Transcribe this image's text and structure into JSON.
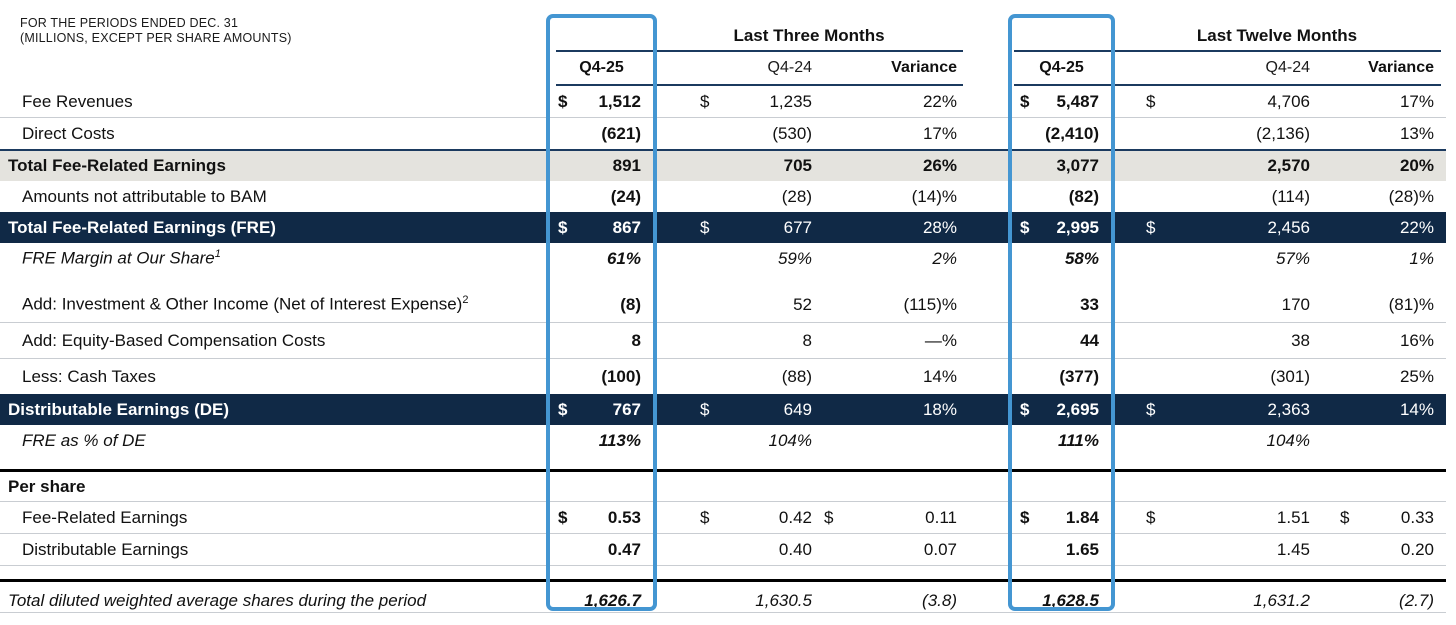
{
  "caption": {
    "line1": "FOR THE PERIODS ENDED DEC. 31",
    "line2": "(MILLIONS, EXCEPT PER SHARE AMOUNTS)"
  },
  "columns": {
    "group1": "Last Three Months",
    "group2": "Last Twelve Months",
    "subcols": [
      "Q4-25",
      "Q4-24",
      "Variance"
    ]
  },
  "highlight": {
    "column": "Q4-25"
  },
  "colors": {
    "highlight_blue": "#4496D2",
    "navy_band": "#102946",
    "gray_band": "#E4E3DE",
    "rule_dark": "#1B3A5F",
    "separator": "#C9CDD2",
    "text": "#111111"
  },
  "rows": [
    {
      "label": "Fee Revenues",
      "kind": "item",
      "sep": "thin",
      "cells": [
        {
          "d": true,
          "v": "1,512"
        },
        {
          "d": true,
          "v": "1,235"
        },
        {
          "v": "22%"
        },
        {
          "d": true,
          "v": "5,487"
        },
        {
          "d": true,
          "v": "4,706"
        },
        {
          "v": "17%"
        }
      ]
    },
    {
      "label": "Direct Costs",
      "kind": "item",
      "sep": "dark",
      "cells": [
        {
          "v": "(621)"
        },
        {
          "v": "(530)"
        },
        {
          "v": "17%"
        },
        {
          "v": "(2,410)"
        },
        {
          "v": "(2,136)"
        },
        {
          "v": "13%"
        }
      ]
    },
    {
      "label": "Total Fee-Related Earnings",
      "kind": "subtotal",
      "cells": [
        {
          "v": "891"
        },
        {
          "v": "705"
        },
        {
          "v": "26%"
        },
        {
          "v": "3,077"
        },
        {
          "v": "2,570"
        },
        {
          "v": "20%"
        }
      ]
    },
    {
      "label": "Amounts not attributable to BAM",
      "kind": "item",
      "cells": [
        {
          "v": "(24)"
        },
        {
          "v": "(28)"
        },
        {
          "v": "(14)%"
        },
        {
          "v": "(82)"
        },
        {
          "v": "(114)"
        },
        {
          "v": "(28)%"
        }
      ]
    },
    {
      "label": "Total Fee-Related Earnings (FRE)",
      "kind": "total",
      "cells": [
        {
          "d": true,
          "v": "867"
        },
        {
          "d": true,
          "v": "677"
        },
        {
          "v": "28%"
        },
        {
          "d": true,
          "v": "2,995"
        },
        {
          "d": true,
          "v": "2,456"
        },
        {
          "v": "22%"
        }
      ]
    },
    {
      "label": "FRE Margin at Our Share",
      "sup": "1",
      "kind": "metric",
      "gap_after": true,
      "cells": [
        {
          "v": "61%"
        },
        {
          "v": "59%"
        },
        {
          "v": "2%"
        },
        {
          "v": "58%"
        },
        {
          "v": "57%"
        },
        {
          "v": "1%"
        }
      ]
    },
    {
      "label": "Add: Investment & Other Income (Net of Interest Expense)",
      "sup": "2",
      "kind": "item",
      "sep": "thin",
      "tall": true,
      "cells": [
        {
          "v": "(8)"
        },
        {
          "v": "52"
        },
        {
          "v": "(115)%"
        },
        {
          "v": "33"
        },
        {
          "v": "170"
        },
        {
          "v": "(81)%"
        }
      ]
    },
    {
      "label": "Add: Equity-Based Compensation Costs",
      "kind": "item",
      "sep": "thin",
      "tall": true,
      "cells": [
        {
          "v": "8"
        },
        {
          "v": "8"
        },
        {
          "v": "—%"
        },
        {
          "v": "44"
        },
        {
          "v": "38"
        },
        {
          "v": "16%"
        }
      ]
    },
    {
      "label": "Less: Cash Taxes",
      "kind": "item",
      "tall": true,
      "cells": [
        {
          "v": "(100)"
        },
        {
          "v": "(88)"
        },
        {
          "v": "14%"
        },
        {
          "v": "(377)"
        },
        {
          "v": "(301)"
        },
        {
          "v": "25%"
        }
      ]
    },
    {
      "label": "Distributable Earnings (DE)",
      "kind": "total",
      "cells": [
        {
          "d": true,
          "v": "767"
        },
        {
          "d": true,
          "v": "649"
        },
        {
          "v": "18%"
        },
        {
          "d": true,
          "v": "2,695"
        },
        {
          "d": true,
          "v": "2,363"
        },
        {
          "v": "14%"
        }
      ]
    },
    {
      "label": "FRE as % of DE",
      "kind": "metric",
      "gap_after": true,
      "rule_after": true,
      "cells": [
        {
          "v": "113%"
        },
        {
          "v": "104%"
        },
        null,
        {
          "v": "111%"
        },
        {
          "v": "104%"
        },
        null
      ]
    },
    {
      "label": "Per share",
      "kind": "section",
      "sep": "thin",
      "cells": [
        null,
        null,
        null,
        null,
        null,
        null
      ]
    },
    {
      "label": "Fee-Related Earnings",
      "kind": "item",
      "sep": "thin",
      "cells": [
        {
          "d": true,
          "v": "0.53"
        },
        {
          "d": true,
          "v": "0.42"
        },
        {
          "d": true,
          "v": "0.11"
        },
        {
          "d": true,
          "v": "1.84"
        },
        {
          "d": true,
          "v": "1.51"
        },
        {
          "d": true,
          "v": "0.33"
        }
      ]
    },
    {
      "label": "Distributable Earnings",
      "kind": "item",
      "sep": "thin",
      "gap_after": true,
      "rule_after": true,
      "cells": [
        {
          "v": "0.47"
        },
        {
          "v": "0.40"
        },
        {
          "v": "0.07"
        },
        {
          "v": "1.65"
        },
        {
          "v": "1.45"
        },
        {
          "v": "0.20"
        }
      ]
    },
    {
      "label": "Total diluted weighted average shares during the period",
      "kind": "shares",
      "cells": [
        {
          "v": "1,626.7"
        },
        {
          "v": "1,630.5"
        },
        {
          "v": "(3.8)"
        },
        {
          "v": "1,628.5"
        },
        {
          "v": "1,631.2"
        },
        {
          "v": "(2.7)"
        }
      ]
    }
  ]
}
